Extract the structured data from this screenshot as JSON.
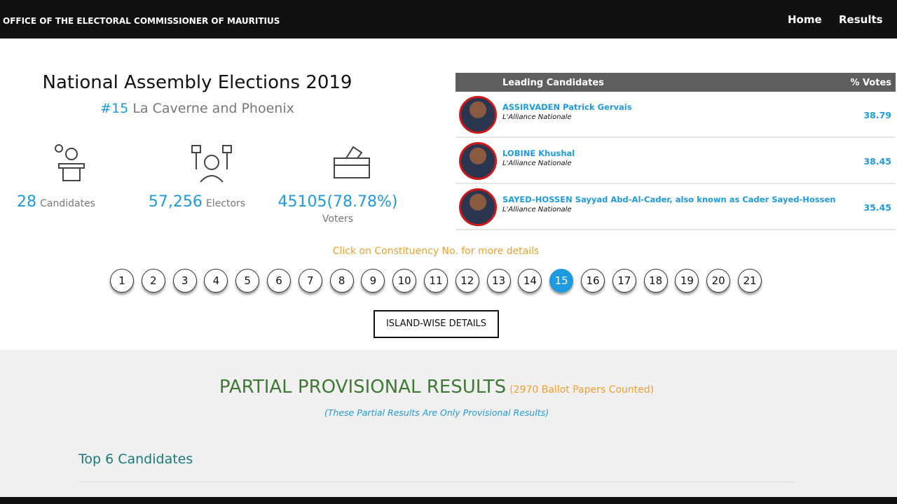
{
  "nav": {
    "brand": "OFFICE OF THE ELECTORAL COMMISSIONER OF MAURITIUS",
    "links": [
      "Home",
      "Results"
    ]
  },
  "election": {
    "title": "National Assembly Elections 2019",
    "constituency_no": "#15",
    "constituency_name": "La Caverne and Phoenix"
  },
  "stats": [
    {
      "value": "28",
      "label": "Candidates"
    },
    {
      "value": "57,256",
      "label": "Electors"
    },
    {
      "value": "45105(78.78%)",
      "label": "Voters"
    }
  ],
  "leading": {
    "headers": [
      "Leading Candidates",
      "% Votes"
    ],
    "rows": [
      {
        "name": "ASSIRVADEN Patrick Gervais",
        "party": "L'Alliance Nationale",
        "votes": "38.79"
      },
      {
        "name": "LOBINE Khushal",
        "party": "L'Alliance Nationale",
        "votes": "38.45"
      },
      {
        "name": "SAYED-HOSSEN Sayyad Abd-Al-Cader, also known as Cader Sayed-Hossen",
        "party": "L'Alliance Nationale",
        "votes": "35.45"
      }
    ]
  },
  "constituencies": {
    "prompt": "Click on Constituency No. for more details",
    "numbers": [
      "1",
      "2",
      "3",
      "4",
      "5",
      "6",
      "7",
      "8",
      "9",
      "10",
      "11",
      "12",
      "13",
      "14",
      "15",
      "16",
      "17",
      "18",
      "19",
      "20",
      "21"
    ],
    "active": "15"
  },
  "island_button": "ISLAND-WISE DETAILS",
  "results": {
    "title": "PARTIAL PROVISIONAL RESULTS",
    "counted": "(2970 Ballot Papers Counted)",
    "note": "(These Partial Results Are Only Provisional Results)",
    "top": "Top 6 Candidates"
  }
}
